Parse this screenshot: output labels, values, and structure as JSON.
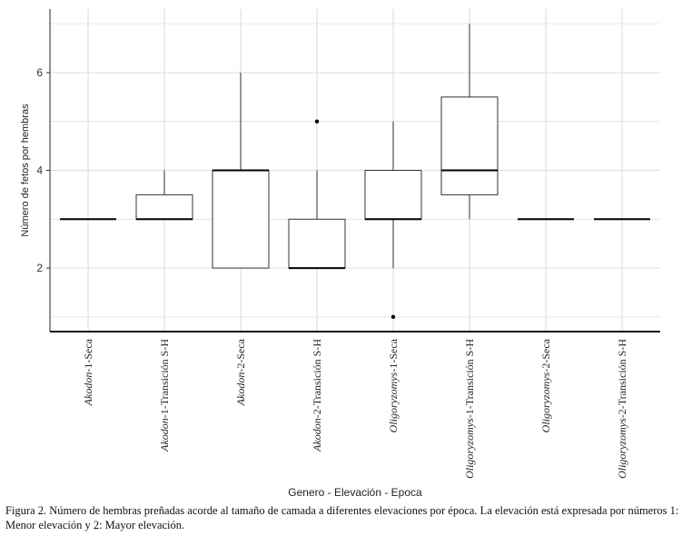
{
  "chart_data": {
    "type": "boxplot",
    "xlabel": "Genero - Elevación - Epoca",
    "ylabel": "Número de fetos por hembras",
    "ylim": [
      0.7,
      7.3
    ],
    "yticks": [
      2,
      4,
      6
    ],
    "grid": true,
    "categories": [
      {
        "genus": "Akodon",
        "rest": "-1-Seca"
      },
      {
        "genus": "Akodon",
        "rest": "-1-Transición S-H"
      },
      {
        "genus": "Akodon",
        "rest": "-2-Seca"
      },
      {
        "genus": "Akodon",
        "rest": "-2-Transición S-H"
      },
      {
        "genus": "Oligoryzomys",
        "rest": "-1-Seca"
      },
      {
        "genus": "Oligoryzomys",
        "rest": "-1-Transición S-H"
      },
      {
        "genus": "Oligoryzomys",
        "rest": "-2-Seca"
      },
      {
        "genus": "Oligoryzomys",
        "rest": "-2-Transición S-H"
      }
    ],
    "boxes": [
      {
        "min": 3,
        "q1": 3,
        "median": 3,
        "q3": 3,
        "max": 3,
        "outliers": []
      },
      {
        "min": 3,
        "q1": 3,
        "median": 3,
        "q3": 3.5,
        "max": 4,
        "outliers": []
      },
      {
        "min": 2,
        "q1": 2,
        "median": 4,
        "q3": 4,
        "max": 6,
        "outliers": []
      },
      {
        "min": 2,
        "q1": 2,
        "median": 2,
        "q3": 3,
        "max": 4,
        "outliers": [
          5
        ]
      },
      {
        "min": 2,
        "q1": 3,
        "median": 3,
        "q3": 4,
        "max": 5,
        "outliers": [
          1
        ]
      },
      {
        "min": 3,
        "q1": 3.5,
        "median": 4,
        "q3": 5.5,
        "max": 7,
        "outliers": []
      },
      {
        "min": 3,
        "q1": 3,
        "median": 3,
        "q3": 3,
        "max": 3,
        "outliers": []
      },
      {
        "min": 3,
        "q1": 3,
        "median": 3,
        "q3": 3,
        "max": 3,
        "outliers": []
      }
    ]
  },
  "caption": "Figura 2. Número de hembras preñadas acorde al tamaño de camada a diferentes elevaciones por época. La elevación está expresada por números 1: Menor elevación y 2: Mayor elevación."
}
